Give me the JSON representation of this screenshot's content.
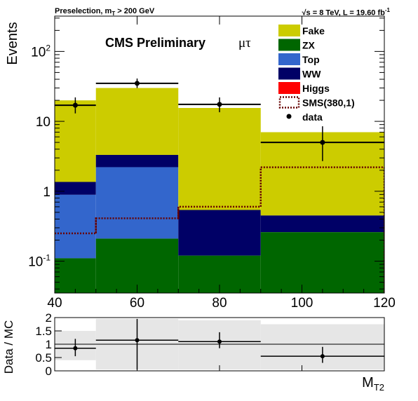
{
  "header": {
    "left_prefix": "Preselection, m",
    "left_sub": "T",
    "left_suffix": " > 200 GeV",
    "right_main": "√s = 8 TeV, L = 19.60 fb",
    "right_sup": "-1"
  },
  "colors": {
    "Fake": "#cccc00",
    "ZX": "#006600",
    "Top": "#3366cc",
    "WW": "#000066",
    "Higgs": "#ff0000",
    "SMS": "#660000",
    "data": "#000000"
  },
  "chart_data": [
    {
      "type": "bar",
      "stacked": true,
      "y_scale": "log",
      "title": "CMS Preliminary",
      "channel": "μτ",
      "xlabel": "",
      "ylabel": "Events",
      "xlim": [
        40,
        120
      ],
      "ylim": [
        0.035,
        320
      ],
      "x_ticks": [
        40,
        60,
        80,
        100,
        120
      ],
      "y_ticks": [
        {
          "value": 0.1,
          "base": "10",
          "exp": "-1"
        },
        {
          "value": 1,
          "label": "1"
        },
        {
          "value": 10,
          "label": "10"
        },
        {
          "value": 100,
          "base": "10",
          "exp": "2"
        }
      ],
      "bins": [
        [
          40,
          50
        ],
        [
          50,
          70
        ],
        [
          70,
          90
        ],
        [
          90,
          120
        ]
      ],
      "series": [
        {
          "name": "ZX",
          "values": [
            0.11,
            0.21,
            0.12,
            0.26
          ]
        },
        {
          "name": "Top",
          "values": [
            0.78,
            2.0,
            0.0,
            0.0
          ]
        },
        {
          "name": "WW",
          "values": [
            0.47,
            1.1,
            0.42,
            0.19
          ]
        },
        {
          "name": "Higgs",
          "values": [
            0.0,
            0.0,
            0.0,
            0.0
          ]
        },
        {
          "name": "Fake",
          "values": [
            18.6,
            26.7,
            15.0,
            6.55
          ]
        }
      ],
      "signal": {
        "name": "SMS(380,1)",
        "values": [
          0.25,
          0.41,
          0.6,
          2.2
        ]
      },
      "data": {
        "name": "data",
        "points": [
          {
            "x": 45,
            "y": 17,
            "xerr": [
              40,
              50
            ],
            "yerr": [
              13,
              22
            ]
          },
          {
            "x": 60,
            "y": 35,
            "xerr": [
              50,
              70
            ],
            "yerr": [
              30,
              41
            ]
          },
          {
            "x": 80,
            "y": 17.5,
            "xerr": [
              70,
              90
            ],
            "yerr": [
              13.5,
              22
            ]
          },
          {
            "x": 105,
            "y": 5,
            "xerr": [
              90,
              120
            ],
            "yerr": [
              2.7,
              8.5
            ]
          }
        ]
      },
      "legend": {
        "placement": "top-right",
        "entries": [
          "Fake",
          "ZX",
          "Top",
          "WW",
          "Higgs",
          "SMS(380,1)",
          "data"
        ]
      }
    },
    {
      "type": "scatter",
      "xlabel_main": "M",
      "xlabel_sub": "T2",
      "ylabel": "Data / MC",
      "xlim": [
        40,
        120
      ],
      "ylim": [
        0,
        2
      ],
      "y_ticks": [
        {
          "value": 0,
          "label": "0"
        },
        {
          "value": 0.5,
          "label": "0.5"
        },
        {
          "value": 1,
          "label": "1"
        },
        {
          "value": 1.5,
          "label": "1.5"
        },
        {
          "value": 2,
          "label": "2"
        }
      ],
      "uncertainty_band": [
        {
          "bin": [
            40,
            50
          ],
          "low": 0.4,
          "high": 1.5
        },
        {
          "bin": [
            50,
            70
          ],
          "low": 0.05,
          "high": 1.95
        },
        {
          "bin": [
            70,
            90
          ],
          "low": 0.05,
          "high": 1.9
        },
        {
          "bin": [
            90,
            120
          ],
          "low": 0.05,
          "high": 1.75
        }
      ],
      "points": [
        {
          "x": 45,
          "y": 0.85,
          "xerr": [
            40,
            50
          ],
          "yerr": [
            0.55,
            1.2
          ]
        },
        {
          "x": 60,
          "y": 1.15,
          "xerr": [
            50,
            70
          ],
          "yerr": [
            0.05,
            1.95
          ]
        },
        {
          "x": 80,
          "y": 1.1,
          "xerr": [
            70,
            90
          ],
          "yerr": [
            0.85,
            1.45
          ]
        },
        {
          "x": 105,
          "y": 0.55,
          "xerr": [
            90,
            120
          ],
          "yerr": [
            0.3,
            0.9
          ]
        }
      ]
    }
  ]
}
